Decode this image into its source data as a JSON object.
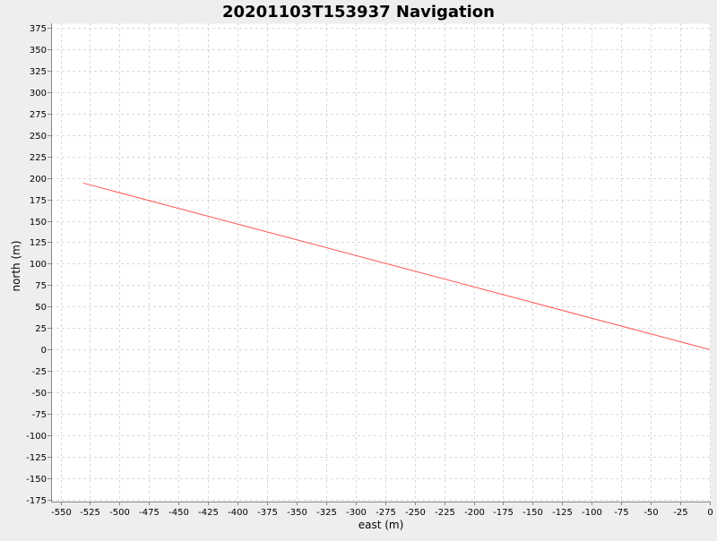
{
  "chart_data": {
    "type": "line",
    "title": "20201103T153937 Navigation",
    "xlabel": "east (m)",
    "ylabel": "north (m)",
    "xlim": [
      -558,
      0
    ],
    "ylim": [
      -177,
      380
    ],
    "x_ticks": [
      -550,
      -525,
      -500,
      -475,
      -450,
      -425,
      -400,
      -375,
      -350,
      -325,
      -300,
      -275,
      -250,
      -225,
      -200,
      -175,
      -150,
      -125,
      -100,
      -75,
      -50,
      -25,
      0
    ],
    "y_ticks": [
      375,
      350,
      325,
      300,
      275,
      250,
      225,
      200,
      175,
      150,
      125,
      100,
      75,
      50,
      25,
      0,
      -25,
      -50,
      -75,
      -100,
      -125,
      -150,
      -175
    ],
    "grid": true,
    "series": [
      {
        "color": "#ff5555",
        "x": [
          -531,
          0
        ],
        "y": [
          194,
          0
        ]
      }
    ]
  },
  "colors": {
    "background": "#eeeeee",
    "plot_background": "#ffffff",
    "grid": "#d9d9d9",
    "axis": "#888888",
    "text": "#000000"
  }
}
